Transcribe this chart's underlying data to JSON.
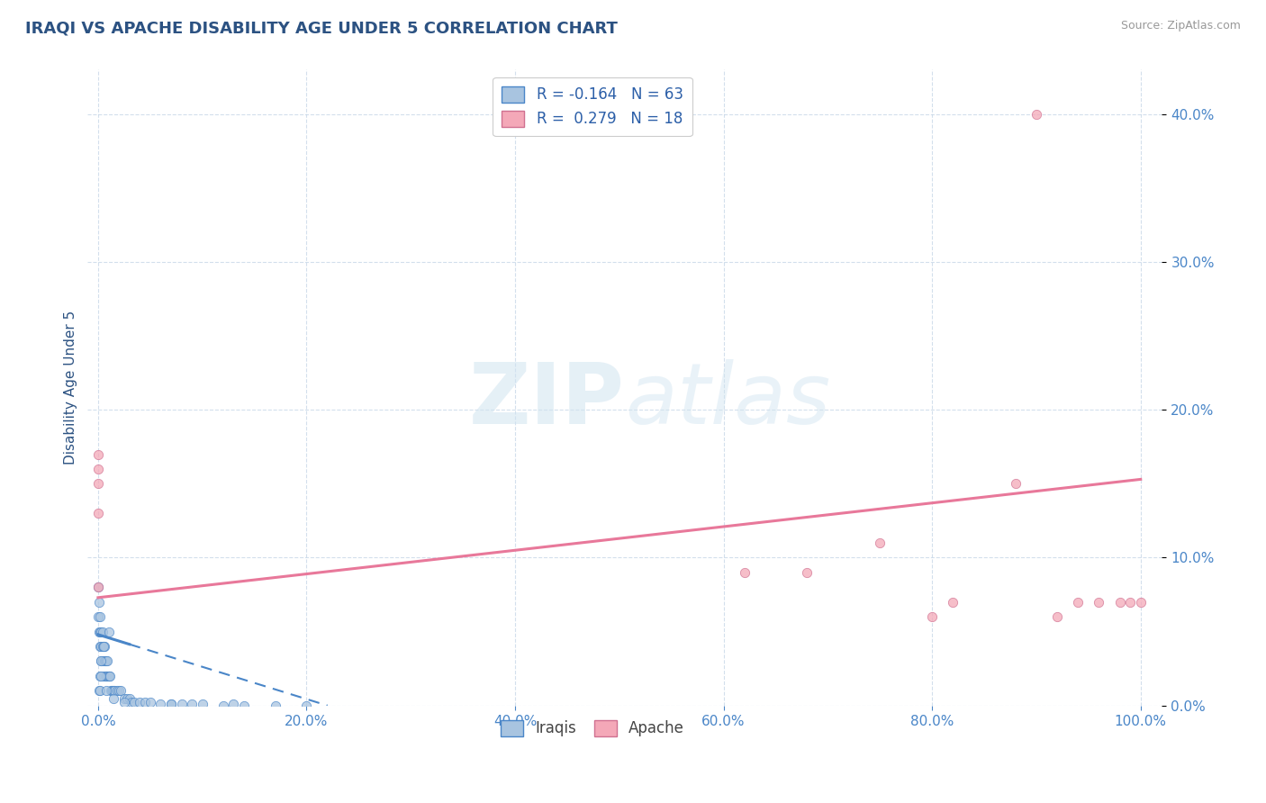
{
  "title": "IRAQI VS APACHE DISABILITY AGE UNDER 5 CORRELATION CHART",
  "source": "Source: ZipAtlas.com",
  "xlabel_label": "Iraqis",
  "xlabel_label2": "Apache",
  "ylabel": "Disability Age Under 5",
  "xlim": [
    0.0,
    1.0
  ],
  "ylim": [
    0.0,
    0.42
  ],
  "xticks": [
    0.0,
    0.2,
    0.4,
    0.6,
    0.8,
    1.0
  ],
  "xtick_labels": [
    "0.0%",
    "20.0%",
    "40.0%",
    "60.0%",
    "80.0%",
    "100.0%"
  ],
  "ytick_vals": [
    0.0,
    0.1,
    0.2,
    0.3,
    0.4
  ],
  "ytick_labels": [
    "0.0%",
    "10.0%",
    "20.0%",
    "30.0%",
    "40.0%"
  ],
  "iraqis_R": -0.164,
  "iraqis_N": 63,
  "apache_R": 0.279,
  "apache_N": 18,
  "iraqis_color": "#a8c4e0",
  "apache_color": "#f4a8b8",
  "iraqis_line_color": "#4a86c8",
  "apache_line_color": "#e8789a",
  "background_color": "#ffffff",
  "watermark": "ZIPatlas",
  "title_color": "#2c5282",
  "axis_label_color": "#2c5282",
  "tick_color": "#4a86c8",
  "legend_R_color": "#2c5fa8",
  "grid_color": "#c8d8e8",
  "iraqis_scatter_x": [
    0.0,
    0.0,
    0.001,
    0.001,
    0.002,
    0.002,
    0.002,
    0.003,
    0.003,
    0.003,
    0.004,
    0.004,
    0.004,
    0.005,
    0.005,
    0.006,
    0.006,
    0.007,
    0.007,
    0.008,
    0.008,
    0.009,
    0.009,
    0.01,
    0.01,
    0.011,
    0.012,
    0.013,
    0.014,
    0.015,
    0.016,
    0.018,
    0.02,
    0.022,
    0.025,
    0.028,
    0.03,
    0.032,
    0.035,
    0.04,
    0.045,
    0.05,
    0.06,
    0.07,
    0.08,
    0.09,
    0.1,
    0.12,
    0.14,
    0.17,
    0.2,
    0.01,
    0.005,
    0.003,
    0.002,
    0.001,
    0.002,
    0.003,
    0.008,
    0.015,
    0.025,
    0.07,
    0.13
  ],
  "iraqis_scatter_y": [
    0.08,
    0.06,
    0.07,
    0.05,
    0.05,
    0.04,
    0.06,
    0.04,
    0.05,
    0.03,
    0.04,
    0.05,
    0.03,
    0.04,
    0.02,
    0.03,
    0.04,
    0.03,
    0.02,
    0.03,
    0.02,
    0.02,
    0.03,
    0.02,
    0.02,
    0.02,
    0.01,
    0.01,
    0.01,
    0.01,
    0.01,
    0.01,
    0.01,
    0.01,
    0.005,
    0.005,
    0.005,
    0.002,
    0.002,
    0.002,
    0.002,
    0.002,
    0.001,
    0.001,
    0.001,
    0.001,
    0.001,
    0.0,
    0.0,
    0.0,
    0.0,
    0.05,
    0.04,
    0.03,
    0.02,
    0.01,
    0.01,
    0.02,
    0.01,
    0.005,
    0.002,
    0.001,
    0.001
  ],
  "apache_scatter_x": [
    0.0,
    0.0,
    0.0,
    0.0,
    0.0,
    0.62,
    0.68,
    0.75,
    0.8,
    0.82,
    0.88,
    0.9,
    0.92,
    0.94,
    0.96,
    0.98,
    0.99,
    1.0
  ],
  "apache_scatter_y": [
    0.13,
    0.15,
    0.16,
    0.17,
    0.08,
    0.09,
    0.09,
    0.11,
    0.06,
    0.07,
    0.15,
    0.4,
    0.06,
    0.07,
    0.07,
    0.07,
    0.07,
    0.07
  ],
  "iraqis_line_x0": 0.0,
  "iraqis_line_x1": 0.22,
  "iraqis_line_y0": 0.048,
  "iraqis_line_y1": 0.0,
  "apache_line_x0": 0.0,
  "apache_line_x1": 1.0,
  "apache_line_y0": 0.073,
  "apache_line_y1": 0.153
}
